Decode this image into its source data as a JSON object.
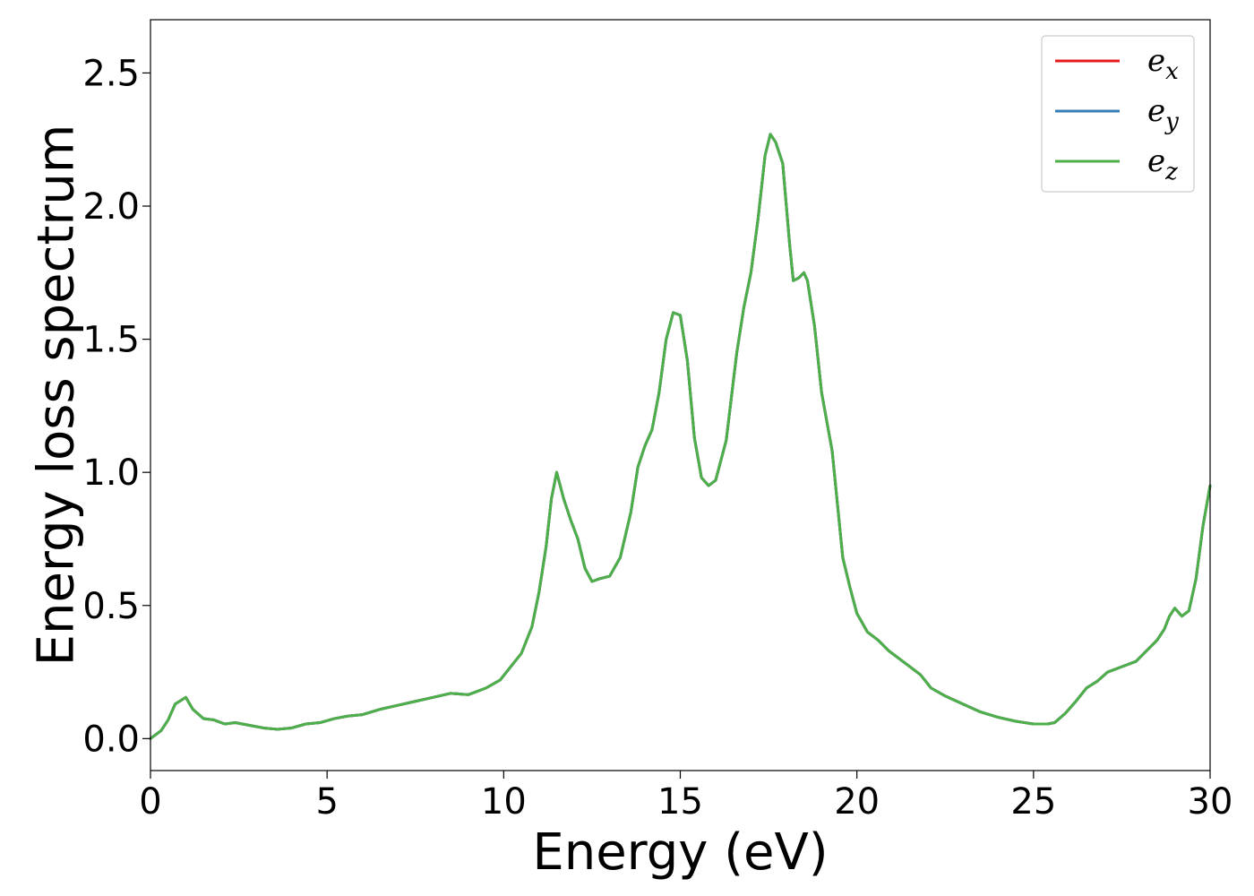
{
  "chart_data": {
    "type": "line",
    "xlabel": "Energy (eV)",
    "ylabel": "Energy loss spectrum",
    "xlim": [
      0,
      30
    ],
    "ylim": [
      -0.12,
      2.7
    ],
    "xticks": [
      0,
      5,
      10,
      15,
      20,
      25,
      30
    ],
    "xtick_labels": [
      "0",
      "5",
      "10",
      "15",
      "20",
      "25",
      "30"
    ],
    "yticks": [
      0.0,
      0.5,
      1.0,
      1.5,
      2.0,
      2.5
    ],
    "ytick_labels": [
      "0.0",
      "0.5",
      "1.0",
      "1.5",
      "2.0",
      "2.5"
    ],
    "grid": false,
    "legend": "top-right",
    "x": [
      0,
      0.3,
      0.5,
      0.7,
      1.0,
      1.2,
      1.5,
      1.8,
      2.1,
      2.4,
      2.8,
      3.2,
      3.6,
      4.0,
      4.4,
      4.8,
      5.2,
      5.6,
      6.0,
      6.5,
      7.0,
      7.5,
      8.0,
      8.5,
      9.0,
      9.5,
      9.9,
      10.2,
      10.5,
      10.8,
      11.0,
      11.2,
      11.35,
      11.5,
      11.7,
      11.9,
      12.1,
      12.3,
      12.5,
      12.7,
      13.0,
      13.3,
      13.6,
      13.8,
      14.0,
      14.2,
      14.4,
      14.6,
      14.8,
      15.0,
      15.2,
      15.4,
      15.6,
      15.8,
      16.0,
      16.3,
      16.6,
      16.8,
      17.0,
      17.2,
      17.4,
      17.55,
      17.7,
      17.9,
      18.1,
      18.2,
      18.35,
      18.5,
      18.6,
      18.8,
      19.0,
      19.3,
      19.6,
      19.8,
      20.0,
      20.3,
      20.6,
      20.9,
      21.2,
      21.5,
      21.8,
      22.1,
      22.5,
      23.0,
      23.5,
      24.0,
      24.5,
      25.0,
      25.4,
      25.6,
      25.9,
      26.2,
      26.5,
      26.8,
      27.1,
      27.5,
      27.9,
      28.2,
      28.5,
      28.7,
      28.85,
      29.0,
      29.2,
      29.4,
      29.6,
      29.8,
      30.0
    ],
    "series": [
      {
        "name": "e",
        "subscript": "x",
        "color": "#e41a1c",
        "values": [
          0.0,
          0.03,
          0.07,
          0.13,
          0.155,
          0.11,
          0.075,
          0.07,
          0.055,
          0.06,
          0.05,
          0.04,
          0.035,
          0.04,
          0.055,
          0.06,
          0.075,
          0.085,
          0.09,
          0.11,
          0.125,
          0.14,
          0.155,
          0.17,
          0.165,
          0.19,
          0.22,
          0.27,
          0.32,
          0.42,
          0.55,
          0.72,
          0.9,
          1.0,
          0.9,
          0.82,
          0.75,
          0.64,
          0.59,
          0.6,
          0.61,
          0.68,
          0.85,
          1.02,
          1.1,
          1.16,
          1.3,
          1.5,
          1.6,
          1.59,
          1.42,
          1.13,
          0.98,
          0.95,
          0.97,
          1.12,
          1.45,
          1.62,
          1.75,
          1.95,
          2.19,
          2.27,
          2.24,
          2.16,
          1.85,
          1.72,
          1.73,
          1.75,
          1.72,
          1.55,
          1.3,
          1.08,
          0.68,
          0.57,
          0.47,
          0.4,
          0.37,
          0.33,
          0.3,
          0.27,
          0.24,
          0.19,
          0.16,
          0.13,
          0.1,
          0.08,
          0.065,
          0.055,
          0.055,
          0.06,
          0.095,
          0.14,
          0.19,
          0.215,
          0.25,
          0.27,
          0.29,
          0.33,
          0.37,
          0.41,
          0.46,
          0.49,
          0.46,
          0.48,
          0.6,
          0.8,
          0.95
        ]
      },
      {
        "name": "e",
        "subscript": "y",
        "color": "#377eb8",
        "values": [
          0.0,
          0.03,
          0.07,
          0.13,
          0.155,
          0.11,
          0.075,
          0.07,
          0.055,
          0.06,
          0.05,
          0.04,
          0.035,
          0.04,
          0.055,
          0.06,
          0.075,
          0.085,
          0.09,
          0.11,
          0.125,
          0.14,
          0.155,
          0.17,
          0.165,
          0.19,
          0.22,
          0.27,
          0.32,
          0.42,
          0.55,
          0.72,
          0.9,
          1.0,
          0.9,
          0.82,
          0.75,
          0.64,
          0.59,
          0.6,
          0.61,
          0.68,
          0.85,
          1.02,
          1.1,
          1.16,
          1.3,
          1.5,
          1.6,
          1.59,
          1.42,
          1.13,
          0.98,
          0.95,
          0.97,
          1.12,
          1.45,
          1.62,
          1.75,
          1.95,
          2.19,
          2.27,
          2.24,
          2.16,
          1.85,
          1.72,
          1.73,
          1.75,
          1.72,
          1.55,
          1.3,
          1.08,
          0.68,
          0.57,
          0.47,
          0.4,
          0.37,
          0.33,
          0.3,
          0.27,
          0.24,
          0.19,
          0.16,
          0.13,
          0.1,
          0.08,
          0.065,
          0.055,
          0.055,
          0.06,
          0.095,
          0.14,
          0.19,
          0.215,
          0.25,
          0.27,
          0.29,
          0.33,
          0.37,
          0.41,
          0.46,
          0.49,
          0.46,
          0.48,
          0.6,
          0.8,
          0.95
        ]
      },
      {
        "name": "e",
        "subscript": "z",
        "color": "#4daf4a",
        "values": [
          0.0,
          0.03,
          0.07,
          0.13,
          0.155,
          0.11,
          0.075,
          0.07,
          0.055,
          0.06,
          0.05,
          0.04,
          0.035,
          0.04,
          0.055,
          0.06,
          0.075,
          0.085,
          0.09,
          0.11,
          0.125,
          0.14,
          0.155,
          0.17,
          0.165,
          0.19,
          0.22,
          0.27,
          0.32,
          0.42,
          0.55,
          0.72,
          0.9,
          1.0,
          0.9,
          0.82,
          0.75,
          0.64,
          0.59,
          0.6,
          0.61,
          0.68,
          0.85,
          1.02,
          1.1,
          1.16,
          1.3,
          1.5,
          1.6,
          1.59,
          1.42,
          1.13,
          0.98,
          0.95,
          0.97,
          1.12,
          1.45,
          1.62,
          1.75,
          1.95,
          2.19,
          2.27,
          2.24,
          2.16,
          1.85,
          1.72,
          1.73,
          1.75,
          1.72,
          1.55,
          1.3,
          1.08,
          0.68,
          0.57,
          0.47,
          0.4,
          0.37,
          0.33,
          0.3,
          0.27,
          0.24,
          0.19,
          0.16,
          0.13,
          0.1,
          0.08,
          0.065,
          0.055,
          0.055,
          0.06,
          0.095,
          0.14,
          0.19,
          0.215,
          0.25,
          0.27,
          0.29,
          0.33,
          0.37,
          0.41,
          0.46,
          0.49,
          0.46,
          0.48,
          0.6,
          0.8,
          0.95
        ]
      }
    ]
  }
}
